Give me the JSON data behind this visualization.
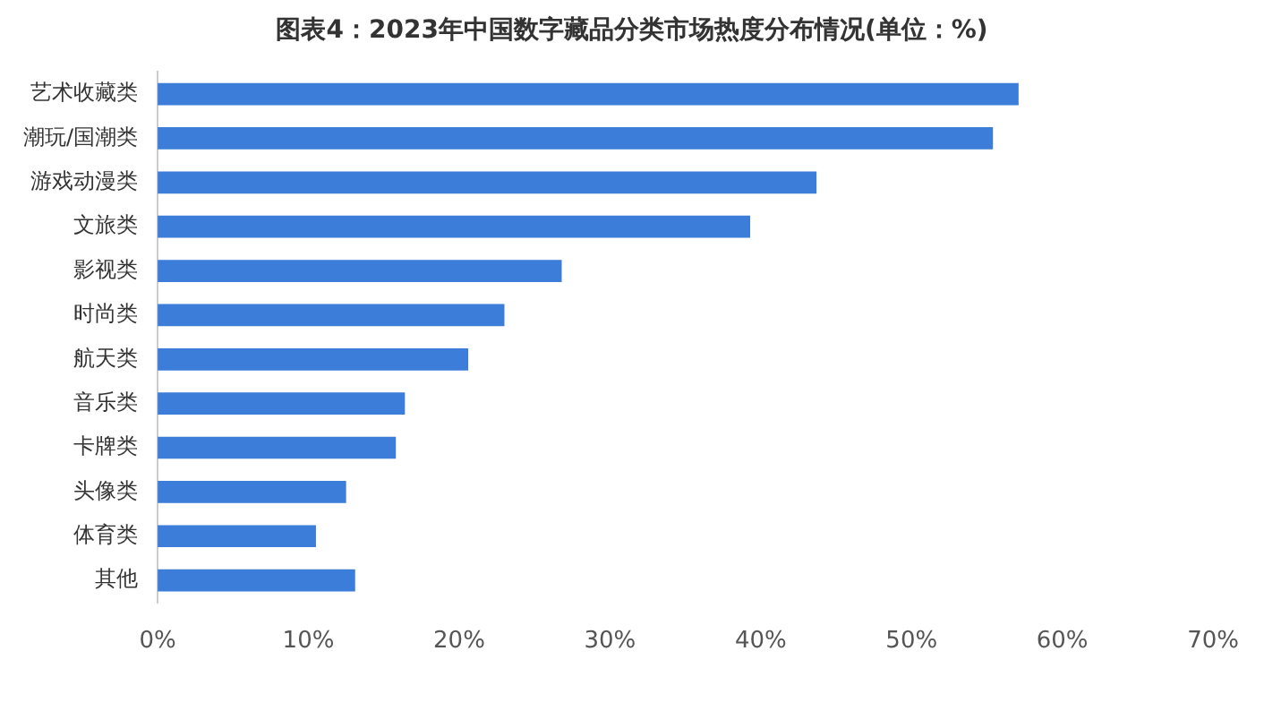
{
  "chart_data": {
    "type": "bar",
    "orientation": "horizontal",
    "title": "图表4：2023年中国数字藏品分类市场热度分布情况(单位：%)",
    "categories": [
      "艺术收藏类",
      "潮玩/国潮类",
      "游戏动漫类",
      "文旅类",
      "影视类",
      "时尚类",
      "航天类",
      "音乐类",
      "卡牌类",
      "头像类",
      "体育类",
      "其他"
    ],
    "values": [
      57.1,
      55.4,
      43.7,
      39.3,
      26.8,
      23.0,
      20.6,
      16.4,
      15.8,
      12.5,
      10.5,
      13.1
    ],
    "color": "#3b7dd8",
    "xlim": [
      0,
      70
    ],
    "xticks": [
      {
        "value": 0,
        "label": "0%"
      },
      {
        "value": 10,
        "label": "10%"
      },
      {
        "value": 20,
        "label": "20%"
      },
      {
        "value": 30,
        "label": "30%"
      },
      {
        "value": 40,
        "label": "40%"
      },
      {
        "value": 50,
        "label": "50%"
      },
      {
        "value": 60,
        "label": "60%"
      },
      {
        "value": 70,
        "label": "70%"
      }
    ],
    "grid": false,
    "legend": false
  }
}
